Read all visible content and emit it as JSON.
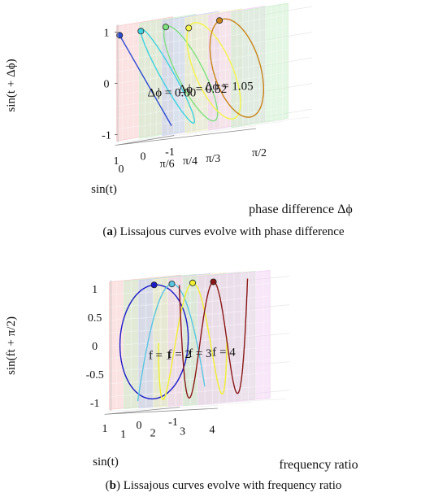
{
  "captions": {
    "a": {
      "letter": "a",
      "text": "Lissajous curves evolve with phase difference"
    },
    "b": {
      "letter": "b",
      "text": "Lissajous curves evolve with frequency ratio"
    }
  },
  "chart_data": [
    {
      "panel": "a",
      "type": "line",
      "projection": "3d",
      "title": "",
      "xlabel": "sin(t)",
      "ylabel": "sin(t + Δϕ)",
      "zlabel": "phase difference Δϕ",
      "x_ticks": [
        "-1",
        "0",
        "1"
      ],
      "y_ticks": [
        "-1",
        "0",
        "1"
      ],
      "z_ticks": [
        "0",
        "π/6",
        "π/4",
        "π/3",
        "π/2"
      ],
      "depth_range": [
        0,
        1.5708
      ],
      "planes": [
        {
          "depth": 0.0,
          "color": "#f7cccc"
        },
        {
          "depth": 0.2618,
          "color": "#cdeecd"
        },
        {
          "depth": 0.5236,
          "color": "#cfcff2"
        },
        {
          "depth": 0.7854,
          "color": "#f2f2c4"
        },
        {
          "depth": 1.0472,
          "color": "#f2d3f2"
        },
        {
          "depth": 1.309,
          "color": "#cdeecd"
        }
      ],
      "series": [
        {
          "phase": 0.0,
          "color": "#2b4ad0",
          "marker_t": 1.2
        },
        {
          "phase": 0.2618,
          "color": "#3ed2e0",
          "marker_t": 1.57
        },
        {
          "phase": 0.5236,
          "color": "#7fe07f",
          "marker_t": 1.2
        },
        {
          "phase": 0.7854,
          "color": "#f4f44a",
          "marker_t": 1.2
        },
        {
          "phase": 1.0472,
          "color": "#c88419",
          "marker_t": 0.7
        }
      ],
      "annotations": [
        {
          "text": "Δϕ = 0.00",
          "depth": 0.37
        },
        {
          "text": "Δϕ = 0.52",
          "depth": 0.72
        },
        {
          "text": "Δϕ = 1.05",
          "depth": 1.02
        }
      ]
    },
    {
      "panel": "b",
      "type": "line",
      "projection": "3d",
      "title": "",
      "xlabel": "sin(t)",
      "ylabel": "sin(ft + π/2)",
      "zlabel": "frequency ratio",
      "x_ticks": [
        "-1",
        "0",
        "1"
      ],
      "y_ticks": [
        "-1",
        "-0.5",
        "0",
        "0.5",
        "1"
      ],
      "z_ticks": [
        "1",
        "2",
        "3",
        "4"
      ],
      "depth_range": [
        0.6,
        4.3
      ],
      "planes": [
        {
          "depth": 0.7,
          "color": "#f7cccc"
        },
        {
          "depth": 1.2,
          "color": "#cdeecd"
        },
        {
          "depth": 1.7,
          "color": "#cfcff2"
        },
        {
          "depth": 2.2,
          "color": "#f2f2c4"
        },
        {
          "depth": 2.7,
          "color": "#f2d3f2"
        },
        {
          "depth": 3.2,
          "color": "#cdeecd"
        },
        {
          "depth": 3.7,
          "color": "#f2d3f2"
        }
      ],
      "series": [
        {
          "f": 1,
          "depth": 1.0,
          "color": "#1a1ac8",
          "t_range": [
            0,
            6.2832
          ],
          "marker_t": 0.0
        },
        {
          "f": 2,
          "depth": 1.6,
          "color": "#58c6e0",
          "t_range": [
            -1.3,
            1.5708
          ],
          "marker_t": 0.0
        },
        {
          "f": 3,
          "depth": 2.3,
          "color": "#f0f030",
          "t_range": [
            -1.5708,
            1.5708
          ],
          "marker_t": 0.0
        },
        {
          "f": 4,
          "depth": 3.0,
          "color": "#8a1818",
          "t_range": [
            -1.5708,
            1.5708
          ],
          "marker_t": 0.0
        }
      ],
      "annotations": [
        {
          "text": "f = 1",
          "depth": 1.55
        },
        {
          "text": "f = 2",
          "depth": 2.2
        },
        {
          "text": "f = 3",
          "depth": 2.9
        },
        {
          "text": "f = 4",
          "depth": 3.7
        }
      ]
    }
  ]
}
